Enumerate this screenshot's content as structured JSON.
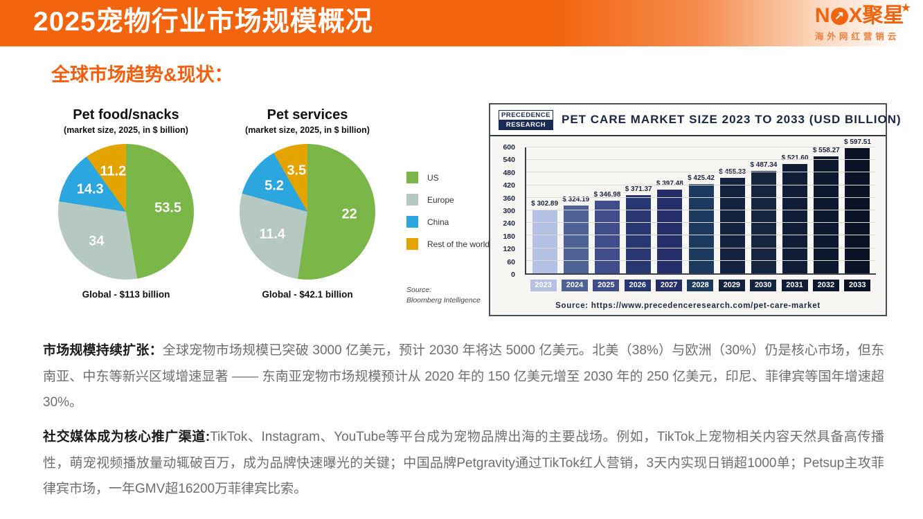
{
  "header": {
    "title": "2025宠物行业市场规模概况",
    "logo": {
      "text_before_o": "N",
      "arrow_glyph": "↗",
      "text_after_o": "X聚星",
      "star_glyph": "★",
      "tagline": "海外网红营销云"
    }
  },
  "section_title": "全球市场趋势&现状：",
  "chart_data": [
    {
      "type": "pie",
      "title": "Pet food/snacks",
      "subtitle": "(market size, 2025, in $ billion)",
      "footer": "Global - $113 billion",
      "categories": [
        "US",
        "Europe",
        "China",
        "Rest of the world"
      ],
      "values": [
        53.5,
        34,
        14.3,
        11.2
      ],
      "value_labels": [
        "53.5",
        "34",
        "14.3",
        "11.2"
      ],
      "colors": [
        "#7ab648",
        "#b5c9c1",
        "#2ba6df",
        "#e3a400"
      ]
    },
    {
      "type": "pie",
      "title": "Pet services",
      "subtitle": "(market size, 2025, in $ billion)",
      "footer": "Global - $42.1 billion",
      "categories": [
        "US",
        "Europe",
        "China",
        "Rest of the world"
      ],
      "values": [
        22,
        11.4,
        5.2,
        3.5
      ],
      "value_labels": [
        "22",
        "11.4",
        "5.2",
        "3.5"
      ],
      "colors": [
        "#7ab648",
        "#b5c9c1",
        "#2ba6df",
        "#e3a400"
      ]
    },
    {
      "type": "bar",
      "title": "PET CARE MARKET SIZE 2023 TO 2033 (USD BILLION)",
      "logo_lines": [
        "PRECEDENCE",
        "RESEARCH"
      ],
      "categories": [
        "2023",
        "2024",
        "2025",
        "2026",
        "2027",
        "2028",
        "2029",
        "2030",
        "2031",
        "2032",
        "2033"
      ],
      "values": [
        302.89,
        324.19,
        346.98,
        371.37,
        397.48,
        425.42,
        455.33,
        487.34,
        521.6,
        558.27,
        597.51
      ],
      "value_labels": [
        "$ 302.89",
        "$ 324.19",
        "$ 346.98",
        "$ 371.37",
        "$ 397.48",
        "$ 425.42",
        "$ 455.33",
        "$ 487.34",
        "$ 521.60",
        "$ 558.27",
        "$ 597.51"
      ],
      "bar_colors": [
        "#b4c0e4",
        "#4f6295",
        "#3f4e8a",
        "#293770",
        "#252e68",
        "#1c3a5e",
        "#13223e",
        "#15253f",
        "#111d36",
        "#0d182f",
        "#0b1426"
      ],
      "ylim": [
        0,
        600
      ],
      "yticks": [
        0,
        60,
        120,
        180,
        240,
        300,
        360,
        420,
        480,
        540,
        600
      ],
      "source": "Source: https://www.precedenceresearch.com/pet-care-market"
    }
  ],
  "legend": {
    "items": [
      {
        "label": "US",
        "color": "#7ab648"
      },
      {
        "label": "Europe",
        "color": "#b5c9c1"
      },
      {
        "label": "China",
        "color": "#2ba6df"
      },
      {
        "label": "Rest of the world",
        "color": "#e3a400"
      }
    ],
    "source_lines": [
      "Source:",
      "Bloomberg Intelligence"
    ]
  },
  "paragraphs": [
    {
      "lead": "市场规模持续扩张：",
      "body": "全球宠物市场规模已突破 3000 亿美元，预计 2030 年将达 5000 亿美元。北美（38%）与欧洲（30%）仍是核心市场，但东南亚、中东等新兴区域增速显著 —— 东南亚宠物市场规模预计从 2020 年的 150 亿美元增至 2030 年的 250 亿美元，印尼、菲律宾等国年增速超 30%。"
    },
    {
      "lead": "社交媒体成为核心推广渠道:",
      "body": "TikTok、Instagram、YouTube等平台成为宠物品牌出海的主要战场。例如，TikTok上宠物相关内容天然具备高传播性，萌宠视频播放量动辄破百万，成为品牌快速曝光的关键；中国品牌Petgravity通过TikTok红人营销，3天内实现日销超1000单；Petsup主攻菲律宾市场，一年GMV超16200万菲律宾比索。"
    }
  ]
}
